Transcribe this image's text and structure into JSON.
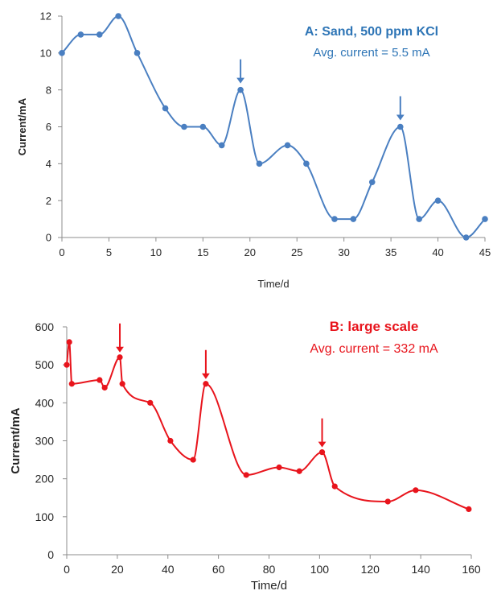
{
  "chart_data": [
    {
      "type": "line",
      "panel": "A",
      "title": "A: Sand, 500 ppm KCl",
      "annotation": "Avg. current = 5.5 mA",
      "xlabel": "Time/d",
      "ylabel": "Current/mA",
      "xlim": [
        0,
        45
      ],
      "ylim": [
        0,
        12
      ],
      "xticks": [
        0,
        5,
        10,
        15,
        20,
        25,
        30,
        35,
        40,
        45
      ],
      "yticks": [
        0,
        2,
        4,
        6,
        8,
        10,
        12
      ],
      "grid": false,
      "color": "#4a7fc1",
      "title_color": "#2e75b6",
      "series": [
        {
          "x": [
            0,
            2,
            4,
            6,
            8,
            11,
            13,
            15,
            17,
            19,
            21,
            24,
            26,
            29,
            31,
            33,
            36,
            38,
            40,
            43,
            45
          ],
          "y": [
            10,
            11,
            11,
            12,
            10,
            7,
            6,
            6,
            5,
            8,
            4,
            5,
            4,
            1,
            1,
            3,
            6,
            1,
            2,
            0,
            1
          ]
        }
      ],
      "arrows_at_x": [
        19,
        36
      ]
    },
    {
      "type": "line",
      "panel": "B",
      "title": "B: large scale",
      "annotation": "Avg. current = 332 mA",
      "xlabel": "Time/d",
      "ylabel": "Current/mA",
      "xlim": [
        0,
        160
      ],
      "ylim": [
        0,
        600
      ],
      "xticks": [
        0,
        20,
        40,
        60,
        80,
        100,
        120,
        140,
        160
      ],
      "yticks": [
        0,
        100,
        200,
        300,
        400,
        500,
        600
      ],
      "grid": false,
      "color": "#e8141c",
      "title_color": "#e8141c",
      "series": [
        {
          "x": [
            0,
            1,
            2,
            13,
            15,
            21,
            22,
            33,
            41,
            50,
            55,
            71,
            84,
            92,
            101,
            106,
            127,
            138,
            159
          ],
          "y": [
            500,
            560,
            450,
            460,
            440,
            520,
            450,
            400,
            300,
            250,
            450,
            210,
            230,
            220,
            270,
            180,
            140,
            170,
            120
          ]
        }
      ],
      "arrows_at_x": [
        21,
        55,
        101
      ]
    }
  ]
}
